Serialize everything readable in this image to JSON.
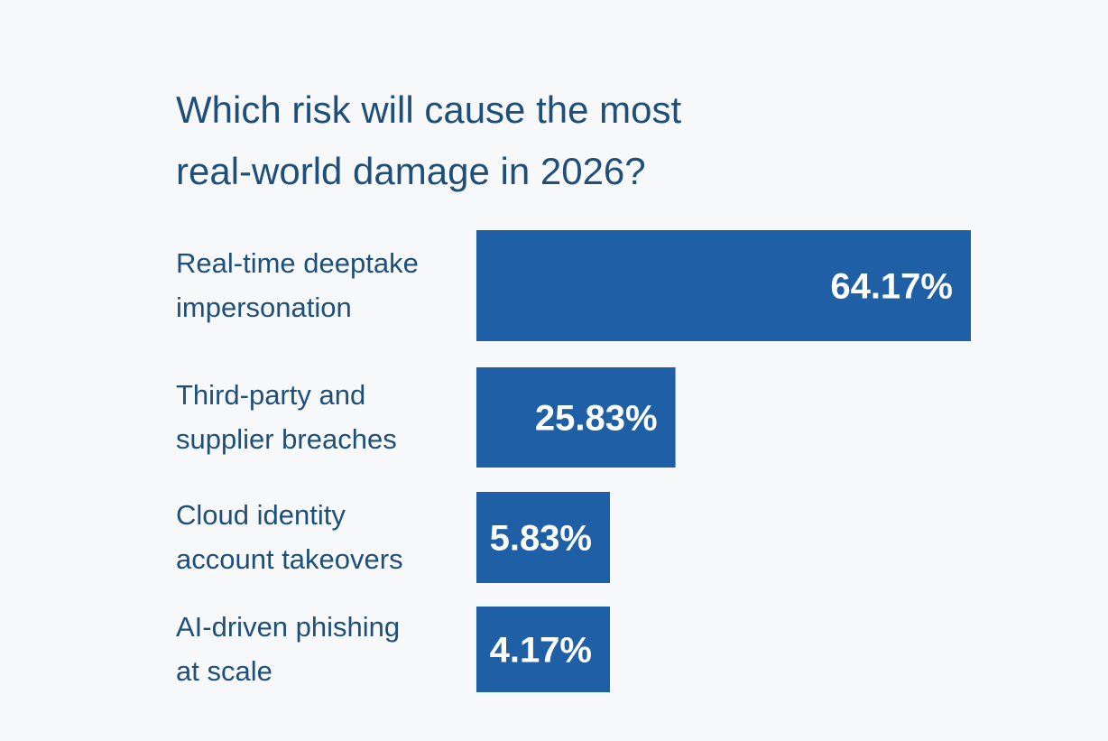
{
  "chart_data": {
    "type": "bar",
    "orientation": "horizontal",
    "title": "Which risk will cause the most real-world damage in 2026?",
    "title_lines": [
      "Which risk will cause the most",
      "real-world damage in 2026?"
    ],
    "categories": [
      "Real-time deeptake impersonation",
      "Third-party and supplier breaches",
      "Cloud identity account takeovers",
      "AI-driven phishing at scale"
    ],
    "category_lines": [
      [
        "Real-time deeptake",
        "impersonation"
      ],
      [
        "Third-party and",
        "supplier breaches"
      ],
      [
        "Cloud identity",
        "account takeovers"
      ],
      [
        "AI-driven phishing",
        "at scale"
      ]
    ],
    "values": [
      64.17,
      25.83,
      5.83,
      4.17
    ],
    "value_labels": [
      "64.17%",
      "25.83%",
      "5.83%",
      "4.17%"
    ],
    "unit": "%",
    "xlabel": "",
    "ylabel": "",
    "legend": "none",
    "grid": false,
    "colors": {
      "bar": "#1f5fa6",
      "title": "#1e4f7a",
      "category_text": "#1e4f7a",
      "value_text": "#ffffff",
      "background": "#f7f8f9"
    }
  }
}
